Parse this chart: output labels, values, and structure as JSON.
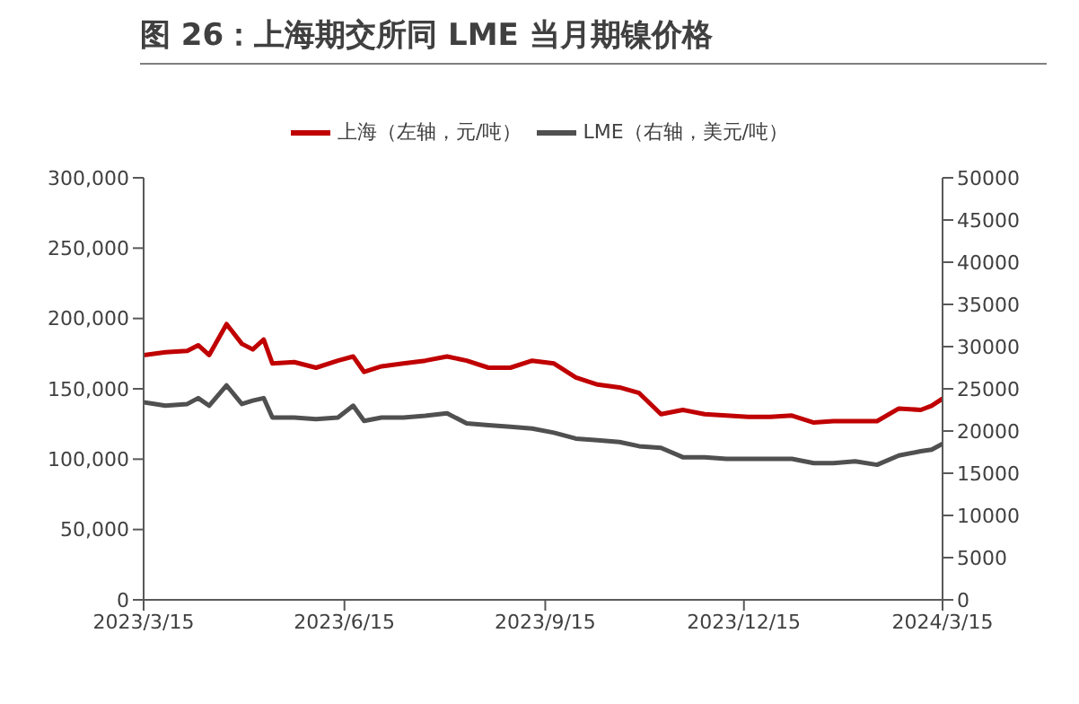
{
  "chart_data": {
    "type": "line",
    "title": "图 26：上海期交所同 LME 当月期镍价格",
    "x": [
      "2023-03-15",
      "2023-03-25",
      "2023-04-04",
      "2023-04-09",
      "2023-04-14",
      "2023-04-22",
      "2023-04-29",
      "2023-05-04",
      "2023-05-09",
      "2023-05-13",
      "2023-05-23",
      "2023-06-02",
      "2023-06-12",
      "2023-06-19",
      "2023-06-24",
      "2023-07-02",
      "2023-07-12",
      "2023-07-22",
      "2023-08-01",
      "2023-08-10",
      "2023-08-20",
      "2023-08-30",
      "2023-09-09",
      "2023-09-19",
      "2023-09-29",
      "2023-10-09",
      "2023-10-19",
      "2023-10-28",
      "2023-11-07",
      "2023-11-17",
      "2023-11-27",
      "2023-12-07",
      "2023-12-17",
      "2023-12-27",
      "2024-01-06",
      "2024-01-16",
      "2024-01-25",
      "2024-02-04",
      "2024-02-14",
      "2024-02-24",
      "2024-03-05",
      "2024-03-10",
      "2024-03-15"
    ],
    "series": [
      {
        "name": "上海（左轴，元/吨）",
        "color": "#c00000",
        "values": [
          174000,
          176000,
          177000,
          181000,
          174000,
          196000,
          182000,
          178000,
          185000,
          168000,
          169000,
          165000,
          170000,
          173000,
          162000,
          166000,
          168000,
          170000,
          173000,
          170000,
          165000,
          165000,
          170000,
          168000,
          158000,
          153000,
          151000,
          147000,
          132000,
          135000,
          132000,
          131000,
          130000,
          130000,
          131000,
          126000,
          127000,
          127000,
          127000,
          136000,
          135000,
          138000,
          143000
        ]
      },
      {
        "name": "LME（右轴，美元/吨）",
        "color": "#505050",
        "axis": "y2",
        "values": [
          23400,
          23000,
          23200,
          23900,
          23000,
          25400,
          23200,
          23600,
          23900,
          21600,
          21600,
          21400,
          21600,
          23000,
          21200,
          21600,
          21600,
          21800,
          22100,
          20900,
          20700,
          20500,
          20300,
          19800,
          19100,
          18900,
          18700,
          18200,
          18000,
          16900,
          16900,
          16700,
          16700,
          16700,
          16700,
          16200,
          16200,
          16400,
          16000,
          17100,
          17600,
          17800,
          18500
        ]
      }
    ],
    "xlim": [
      "2023-03-15",
      "2024-03-15"
    ],
    "xticks": [
      {
        "value": "2023-03-15",
        "label": "2023/3/15"
      },
      {
        "value": "2023-06-15",
        "label": "2023/6/15"
      },
      {
        "value": "2023-09-15",
        "label": "2023/9/15"
      },
      {
        "value": "2023-12-15",
        "label": "2023/12/15"
      },
      {
        "value": "2024-03-15",
        "label": "2024/3/15"
      }
    ],
    "ylim": [
      0,
      300000
    ],
    "yticks": [
      {
        "value": 0,
        "label": "0"
      },
      {
        "value": 50000,
        "label": "50,000"
      },
      {
        "value": 100000,
        "label": "100,000"
      },
      {
        "value": 150000,
        "label": "150,000"
      },
      {
        "value": 200000,
        "label": "200,000"
      },
      {
        "value": 250000,
        "label": "250,000"
      },
      {
        "value": 300000,
        "label": "300,000"
      }
    ],
    "y2lim": [
      0,
      50000
    ],
    "y2ticks": [
      0,
      5000,
      10000,
      15000,
      20000,
      25000,
      30000,
      35000,
      40000,
      45000,
      50000
    ],
    "legend": "top",
    "marker": "none",
    "line_style": "solid"
  }
}
